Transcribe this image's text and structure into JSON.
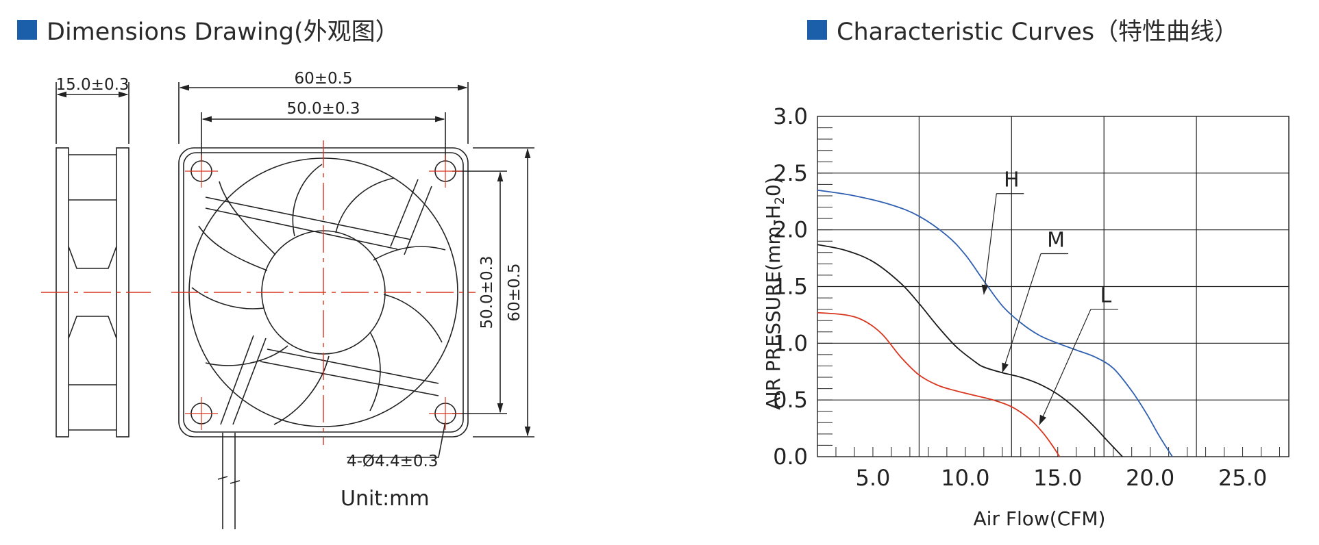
{
  "left": {
    "header_title": "Dimensions Drawing(外观图）",
    "accent_color": "#1b5faa",
    "dims": {
      "thickness": "15.0±0.3",
      "outer_width": "60±0.5",
      "hole_width": "50.0±0.3",
      "hole_height": "50.0±0.3",
      "outer_height": "60±0.5",
      "holes": "4-Ø4.4±0.3"
    },
    "unit": "Unit:mm",
    "centerline_color": "#d9351e"
  },
  "right": {
    "header_title": "Characteristic Curves（特性曲线）",
    "chart_data": {
      "type": "line",
      "xlabel": "Air Flow(CFM)",
      "ylabel": "AIR PRESSURE(mm-H2O)",
      "ylabel_parts": {
        "main": "AIR PRESSURE(mm-H",
        "sub": "2",
        "tail": "0)"
      },
      "xlim": [
        2,
        27.5
      ],
      "ylim": [
        0,
        3.0
      ],
      "x_ticks": [
        "5.0",
        "10.0",
        "15.0",
        "20.0",
        "25.0"
      ],
      "y_ticks": [
        "0.0",
        "0.5",
        "1.0",
        "1.5",
        "2.0",
        "2.5",
        "3.0"
      ],
      "grid": true,
      "series": [
        {
          "name": "H",
          "color": "#2f5fb0",
          "x": [
            2.0,
            4.0,
            6.0,
            7.5,
            9.0,
            10.0,
            11.0,
            12.0,
            13.0,
            14.0,
            15.0,
            16.0,
            17.0,
            18.0,
            19.0,
            19.8,
            20.5,
            21.2
          ],
          "y": [
            2.35,
            2.3,
            2.22,
            2.12,
            1.95,
            1.78,
            1.55,
            1.33,
            1.18,
            1.07,
            1.0,
            0.94,
            0.88,
            0.78,
            0.58,
            0.38,
            0.18,
            0.0
          ]
        },
        {
          "name": "M",
          "color": "#1a1a1a",
          "x": [
            2.0,
            3.5,
            5.0,
            6.5,
            7.5,
            8.5,
            9.5,
            10.5,
            11.0,
            12.0,
            13.0,
            14.0,
            15.0,
            16.0,
            17.0,
            17.8,
            18.5
          ],
          "y": [
            1.87,
            1.82,
            1.72,
            1.53,
            1.35,
            1.15,
            0.97,
            0.84,
            0.79,
            0.74,
            0.7,
            0.64,
            0.55,
            0.42,
            0.26,
            0.12,
            0.0
          ]
        },
        {
          "name": "L",
          "color": "#d9351e",
          "x": [
            2.0,
            3.5,
            4.5,
            5.5,
            6.5,
            7.5,
            8.5,
            9.5,
            10.5,
            11.5,
            12.5,
            13.5,
            14.2,
            14.7,
            15.1
          ],
          "y": [
            1.27,
            1.25,
            1.2,
            1.08,
            0.88,
            0.72,
            0.63,
            0.58,
            0.54,
            0.5,
            0.44,
            0.33,
            0.21,
            0.1,
            0.0
          ]
        }
      ],
      "annotations": [
        {
          "text": "H",
          "x": 12.5,
          "y": 2.38,
          "point_x": 11.0,
          "point_y": 1.43
        },
        {
          "text": "M",
          "x": 14.9,
          "y": 1.85,
          "point_x": 12.0,
          "point_y": 0.74
        },
        {
          "text": "L",
          "x": 17.6,
          "y": 1.36,
          "point_x": 14.0,
          "point_y": 0.28
        }
      ]
    }
  }
}
